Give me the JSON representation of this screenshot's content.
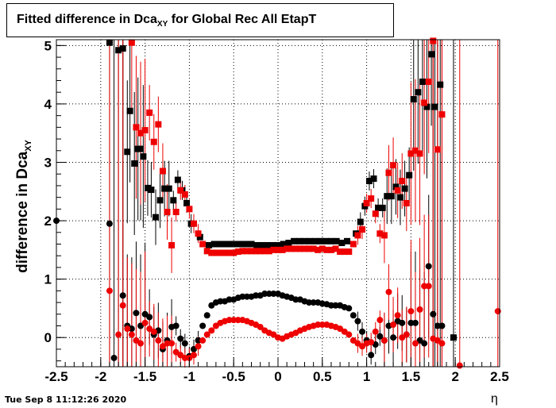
{
  "header": {
    "title_main": "Fitted difference in Dca",
    "title_sub": "XY",
    "title_tail": " for Global Rec All EtapT"
  },
  "axes": {
    "ylabel_main": "difference in Dca",
    "ylabel_sub": "XY",
    "xlabel": "η"
  },
  "footer": {
    "timestamp": "Tue Sep  8 11:12:26 2020"
  },
  "colors": {
    "series_black": "#000000",
    "series_red": "#ee0000",
    "grid": "#000000"
  },
  "chart_data": {
    "type": "scatter",
    "xlim": [
      -2.5,
      2.5
    ],
    "ylim": [
      -0.5,
      5.1
    ],
    "grid": true,
    "x_ticks": [
      -2.5,
      -2,
      -1.5,
      -1,
      -0.5,
      0,
      0.5,
      1,
      1.5,
      2,
      2.5
    ],
    "x_tick_labels": [
      "-2.5",
      "-2",
      "-1.5",
      "-1",
      "-0.5",
      "0",
      "0.5",
      "1",
      "1.5",
      "2",
      "2.5"
    ],
    "y_ticks": [
      0,
      1,
      2,
      3,
      4,
      5
    ],
    "y_tick_labels": [
      "0",
      "1",
      "2",
      "3",
      "4",
      "5"
    ],
    "series": [
      {
        "marker": "square",
        "color": "#000000",
        "x": [
          -1.9,
          -1.8,
          -1.75,
          -1.7,
          -1.67,
          -1.62,
          -1.58,
          -1.55,
          -1.52,
          -1.47,
          -1.43,
          -1.38,
          -1.33,
          -1.28,
          -1.23,
          -1.18,
          -1.13,
          -1.08,
          -1.03,
          -0.98,
          -0.88,
          -0.78,
          -0.72,
          -0.66,
          -0.6,
          -0.54,
          -0.48,
          -0.42,
          -0.36,
          -0.3,
          -0.24,
          -0.18,
          -0.12,
          -0.06,
          0.0,
          0.06,
          0.12,
          0.18,
          0.24,
          0.3,
          0.36,
          0.42,
          0.48,
          0.54,
          0.6,
          0.66,
          0.72,
          0.78,
          0.88,
          0.93,
          0.98,
          1.03,
          1.08,
          1.13,
          1.18,
          1.23,
          1.28,
          1.33,
          1.38,
          1.43,
          1.48,
          1.53,
          1.58,
          1.63,
          1.68,
          1.73,
          1.77,
          1.83,
          1.98
        ],
        "y": [
          5.05,
          4.92,
          4.95,
          3.18,
          3.88,
          2.98,
          3.23,
          3.23,
          3.1,
          2.56,
          2.53,
          2.06,
          2.35,
          2.55,
          2.55,
          2.35,
          2.7,
          2.52,
          2.3,
          1.95,
          1.72,
          1.58,
          1.6,
          1.6,
          1.6,
          1.6,
          1.6,
          1.6,
          1.6,
          1.6,
          1.58,
          1.58,
          1.58,
          1.58,
          1.58,
          1.6,
          1.62,
          1.65,
          1.65,
          1.65,
          1.65,
          1.65,
          1.65,
          1.65,
          1.65,
          1.65,
          1.62,
          1.65,
          1.78,
          1.98,
          2.25,
          2.68,
          2.72,
          2.22,
          2.22,
          2.42,
          2.42,
          2.58,
          2.4,
          2.55,
          2.78,
          4.08,
          4.2,
          4.38,
          3.95,
          4.85,
          3.95,
          4.33,
          0.0
        ]
      },
      {
        "marker": "square",
        "color": "#ee0000",
        "x": [
          -1.65,
          -1.6,
          -1.55,
          -1.5,
          -1.45,
          -1.4,
          -1.35,
          -1.3,
          -1.25,
          -1.2,
          -1.15,
          -1.1,
          -1.05,
          -1.0,
          -0.95,
          -0.9,
          -0.85,
          -0.8,
          -0.75,
          -0.7,
          -0.65,
          -0.6,
          -0.55,
          -0.5,
          -0.45,
          -0.4,
          -0.35,
          -0.3,
          -0.25,
          -0.2,
          -0.15,
          -0.1,
          -0.05,
          0.0,
          0.05,
          0.1,
          0.15,
          0.2,
          0.25,
          0.3,
          0.35,
          0.4,
          0.45,
          0.5,
          0.55,
          0.6,
          0.65,
          0.7,
          0.75,
          0.8,
          0.85,
          0.9,
          0.95,
          1.0,
          1.05,
          1.1,
          1.15,
          1.2,
          1.25,
          1.3,
          1.35,
          1.4,
          1.45,
          1.5,
          1.55,
          1.6,
          1.65,
          1.7,
          1.75,
          1.8,
          1.85
        ],
        "y": [
          5.05,
          3.6,
          3.5,
          3.55,
          3.85,
          3.35,
          3.65,
          2.85,
          2.15,
          1.58,
          2.15,
          2.52,
          2.45,
          2.2,
          1.95,
          1.78,
          1.6,
          1.48,
          1.45,
          1.45,
          1.45,
          1.45,
          1.45,
          1.45,
          1.47,
          1.48,
          1.48,
          1.48,
          1.48,
          1.48,
          1.48,
          1.48,
          1.5,
          1.5,
          1.5,
          1.52,
          1.52,
          1.52,
          1.52,
          1.52,
          1.52,
          1.52,
          1.5,
          1.52,
          1.5,
          1.5,
          1.52,
          1.47,
          1.47,
          1.47,
          1.6,
          1.75,
          1.85,
          2.3,
          2.38,
          2.12,
          1.78,
          1.75,
          2.82,
          2.95,
          2.52,
          2.68,
          2.3,
          3.15,
          3.2,
          3.15,
          4.02,
          4.38,
          5.08,
          3.22,
          3.82
        ]
      },
      {
        "marker": "circle",
        "color": "#000000",
        "x": [
          -2.5,
          -1.9,
          -1.85,
          -1.75,
          -1.7,
          -1.65,
          -1.6,
          -1.55,
          -1.5,
          -1.45,
          -1.4,
          -1.35,
          -1.3,
          -1.25,
          -1.2,
          -1.15,
          -1.1,
          -1.05,
          -1.0,
          -0.95,
          -0.9,
          -0.85,
          -0.8,
          -0.75,
          -0.7,
          -0.65,
          -0.6,
          -0.55,
          -0.5,
          -0.45,
          -0.4,
          -0.35,
          -0.3,
          -0.25,
          -0.2,
          -0.15,
          -0.1,
          -0.05,
          0.0,
          0.05,
          0.1,
          0.15,
          0.2,
          0.25,
          0.3,
          0.35,
          0.4,
          0.45,
          0.5,
          0.55,
          0.6,
          0.65,
          0.7,
          0.75,
          0.8,
          0.85,
          0.9,
          0.95,
          1.0,
          1.05,
          1.1,
          1.15,
          1.2,
          1.25,
          1.3,
          1.35,
          1.4,
          1.45,
          1.5,
          1.55,
          1.6,
          1.65,
          1.7,
          1.75,
          1.8,
          1.85
        ],
        "y": [
          2.0,
          1.95,
          -0.35,
          0.72,
          0.2,
          0.15,
          0.42,
          0.2,
          0.4,
          0.35,
          0.05,
          0.12,
          -0.2,
          -0.05,
          0.18,
          0.2,
          -0.02,
          -0.1,
          -0.32,
          -0.2,
          -0.05,
          0.2,
          0.38,
          0.55,
          0.6,
          0.62,
          0.62,
          0.65,
          0.65,
          0.68,
          0.7,
          0.7,
          0.7,
          0.72,
          0.72,
          0.75,
          0.75,
          0.75,
          0.75,
          0.72,
          0.7,
          0.68,
          0.65,
          0.65,
          0.62,
          0.6,
          0.6,
          0.6,
          0.58,
          0.57,
          0.55,
          0.55,
          0.55,
          0.52,
          0.5,
          0.38,
          0.28,
          0.1,
          -0.05,
          -0.3,
          -0.12,
          0.02,
          -0.05,
          0.2,
          0.0,
          0.28,
          0.25,
          0.05,
          0.25,
          0.25,
          -0.05,
          -0.1,
          1.22,
          0.4,
          0.2,
          0.2
        ]
      },
      {
        "marker": "circle",
        "color": "#ee0000",
        "x": [
          -1.9,
          -1.8,
          -1.75,
          -1.7,
          -1.65,
          -1.6,
          -1.55,
          -1.5,
          -1.45,
          -1.4,
          -1.35,
          -1.3,
          -1.25,
          -1.2,
          -1.15,
          -1.1,
          -1.05,
          -1.0,
          -0.95,
          -0.9,
          -0.85,
          -0.8,
          -0.75,
          -0.7,
          -0.65,
          -0.6,
          -0.55,
          -0.5,
          -0.45,
          -0.4,
          -0.35,
          -0.3,
          -0.25,
          -0.2,
          -0.15,
          -0.1,
          -0.05,
          0.0,
          0.05,
          0.1,
          0.15,
          0.2,
          0.25,
          0.3,
          0.35,
          0.4,
          0.45,
          0.5,
          0.55,
          0.6,
          0.65,
          0.7,
          0.75,
          0.8,
          0.85,
          0.9,
          0.95,
          1.0,
          1.05,
          1.1,
          1.15,
          1.2,
          1.25,
          1.3,
          1.35,
          1.4,
          1.45,
          1.5,
          1.55,
          1.6,
          1.65,
          1.7,
          1.75,
          1.8,
          1.85,
          2.05,
          2.48
        ],
        "y": [
          0.8,
          0.05,
          0.55,
          0.15,
          0.05,
          -0.05,
          -0.1,
          0.25,
          0.15,
          0.1,
          -0.05,
          -0.15,
          -0.1,
          -0.1,
          -0.25,
          -0.3,
          -0.35,
          -0.35,
          -0.3,
          -0.15,
          -0.05,
          0.05,
          0.12,
          0.2,
          0.25,
          0.28,
          0.3,
          0.3,
          0.3,
          0.3,
          0.28,
          0.25,
          0.22,
          0.18,
          0.12,
          0.08,
          0.05,
          0.0,
          -0.02,
          0.02,
          0.05,
          0.08,
          0.12,
          0.15,
          0.18,
          0.2,
          0.22,
          0.22,
          0.22,
          0.2,
          0.18,
          0.15,
          0.1,
          0.05,
          -0.05,
          -0.1,
          -0.15,
          -0.1,
          -0.08,
          0.1,
          0.3,
          -0.05,
          0.78,
          0.22,
          0.38,
          0.0,
          0.05,
          0.45,
          -0.1,
          0.48,
          0.88,
          0.88,
          -0.02,
          -0.05,
          -0.1,
          -0.48,
          0.45
        ]
      }
    ]
  }
}
